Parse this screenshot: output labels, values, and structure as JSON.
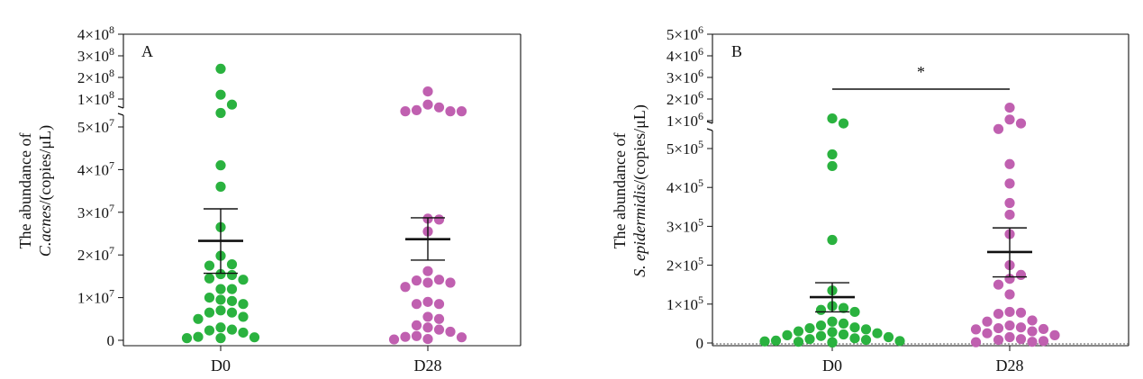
{
  "chart_data": [
    {
      "panel_label": "A",
      "type": "scatter",
      "categories": [
        "D0",
        "D28"
      ],
      "ylabel_line1": "The abundance of",
      "ylabel_italic": "C.acnes",
      "ylabel_rest": "/(copies/μL)",
      "axis": {
        "broken": true,
        "lower": {
          "range": [
            0,
            50000000
          ],
          "ticks": [
            0,
            10000000,
            20000000,
            30000000,
            40000000,
            50000000
          ],
          "tick_labels": [
            "0",
            "1×10^7",
            "2×10^7",
            "3×10^7",
            "4×10^7",
            "5×10^7"
          ]
        },
        "upper": {
          "range": [
            100000000,
            400000000
          ],
          "ticks": [
            100000000,
            200000000,
            300000000,
            400000000
          ],
          "tick_labels": [
            "1×10^8",
            "2×10^8",
            "3×10^8",
            "4×10^8"
          ]
        }
      },
      "series": [
        {
          "category": "D0",
          "color": "#2ab23f",
          "mean": 23300000,
          "sem_upper": 30800000,
          "sem_lower": 15700000,
          "points": [
            240000000,
            120000000,
            90000000,
            75000000,
            41000000,
            36000000,
            26500000,
            19800000,
            17800000,
            17500000,
            15500000,
            15300000,
            14500000,
            14200000,
            12000000,
            12000000,
            10000000,
            9500000,
            9200000,
            8500000,
            7000000,
            6500000,
            6500000,
            5500000,
            5000000,
            3000000,
            2500000,
            2300000,
            1800000,
            800000,
            700000,
            500000,
            500000
          ]
        },
        {
          "category": "D28",
          "color": "#c060b0",
          "mean": 23700000,
          "sem_upper": 28700000,
          "sem_lower": 18800000,
          "points": [
            135000000,
            90000000,
            85000000,
            80000000,
            78000000,
            78000000,
            78000000,
            28500000,
            28300000,
            25500000,
            16200000,
            14200000,
            14000000,
            13500000,
            13500000,
            12500000,
            9000000,
            8500000,
            8500000,
            5500000,
            5000000,
            3500000,
            3000000,
            2500000,
            2000000,
            1000000,
            800000,
            700000,
            300000,
            200000
          ]
        }
      ]
    },
    {
      "panel_label": "B",
      "type": "scatter",
      "categories": [
        "D0",
        "D28"
      ],
      "ylabel_line1": "The abundance of",
      "ylabel_italic": "S. epidermidis",
      "ylabel_rest": "/(copies/μL)",
      "significance": "*",
      "axis": {
        "broken": true,
        "lower": {
          "range": [
            0,
            500000
          ],
          "ticks": [
            0,
            100000,
            200000,
            300000,
            400000,
            500000
          ],
          "tick_labels": [
            "0",
            "1×10^5",
            "2×10^5",
            "3×10^5",
            "4×10^5",
            "5×10^5"
          ]
        },
        "upper": {
          "range": [
            1000000,
            5000000
          ],
          "ticks": [
            1000000,
            2000000,
            3000000,
            4000000,
            5000000
          ],
          "tick_labels": [
            "1×10^6",
            "2×10^6",
            "3×10^6",
            "4×10^6",
            "5×10^6"
          ]
        }
      },
      "series": [
        {
          "category": "D0",
          "color": "#2ab23f",
          "mean": 118000,
          "sem_upper": 155000,
          "sem_lower": 80000,
          "points": [
            1100000,
            950000,
            485000,
            455000,
            265000,
            135000,
            95000,
            90000,
            85000,
            80000,
            55000,
            50000,
            45000,
            40000,
            38000,
            35000,
            30000,
            28000,
            25000,
            22000,
            20000,
            18000,
            15000,
            12000,
            10000,
            8000,
            6000,
            5000,
            4000,
            3000,
            2000,
            1000
          ]
        },
        {
          "category": "D28",
          "color": "#c060b0",
          "mean": 234000,
          "sem_upper": 296000,
          "sem_lower": 170000,
          "points": [
            1600000,
            1050000,
            950000,
            850000,
            460000,
            410000,
            360000,
            330000,
            280000,
            200000,
            175000,
            165000,
            150000,
            125000,
            80000,
            78000,
            75000,
            58000,
            55000,
            45000,
            40000,
            38000,
            36000,
            35000,
            30000,
            25000,
            20000,
            15000,
            10000,
            8000,
            5000,
            3000,
            2000
          ]
        }
      ]
    }
  ]
}
